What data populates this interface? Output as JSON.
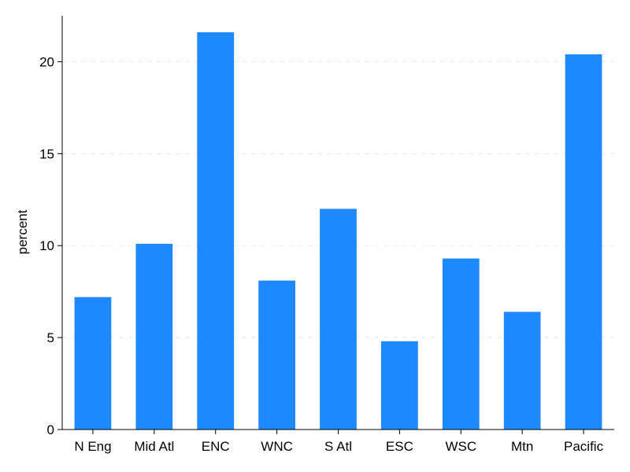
{
  "chart_data": {
    "type": "bar",
    "categories": [
      "N Eng",
      "Mid Atl",
      "ENC",
      "WNC",
      "S Atl",
      "ESC",
      "WSC",
      "Mtn",
      "Pacific"
    ],
    "values": [
      7.2,
      10.1,
      21.6,
      8.1,
      12.0,
      4.8,
      9.3,
      6.4,
      20.4
    ],
    "ylabel": "percent",
    "ylim": [
      0,
      22.5
    ],
    "yticks": [
      0,
      5,
      10,
      15,
      20
    ],
    "grid": true,
    "bar_color": "#1e88ff"
  }
}
